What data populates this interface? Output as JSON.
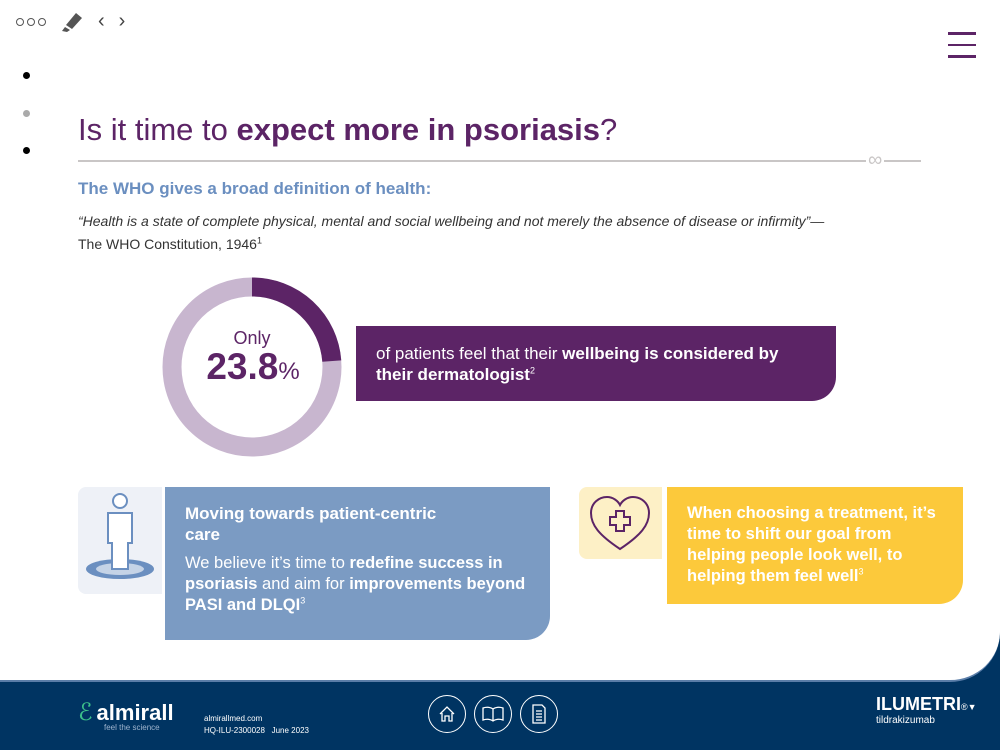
{
  "toolbar": {
    "icons": [
      "more-icon",
      "highlighter-icon",
      "back-icon",
      "forward-icon"
    ]
  },
  "title": {
    "normal": "Is it time to ",
    "bold": "expect more in psoriasis",
    "end": "?"
  },
  "subheading": "The WHO gives a broad definition of health:",
  "quote": {
    "text": "“Health is a state of complete physical, mental and social wellbeing and not merely the absence of disease or infirmity”—",
    "source": "The WHO Constitution, 1946",
    "ref": "1"
  },
  "stat": {
    "prefix": "Only",
    "value": "23.8",
    "unit": "%",
    "fraction": 0.238,
    "text1": "of patients feel that their ",
    "bold1": "wellbeing is considered by their dermatologist",
    "ref": "2"
  },
  "card_blue": {
    "heading": "Moving towards patient-centric care",
    "t1": "We believe it’s time to ",
    "b1": "redefine success in psoriasis",
    "t2": " and aim for ",
    "b2": "improvements beyond PASI and DLQI",
    "ref": "3"
  },
  "card_yellow": {
    "text": "When choosing a treatment, it’s time to shift our goal from helping people look well, to helping them feel well",
    "ref": "3"
  },
  "footer": {
    "company": "almirall",
    "tagline": "feel the science",
    "website": "almirallmed.com",
    "code": "HQ-ILU-2300028",
    "date": "June 2023",
    "brand": "ILUMETRI",
    "brand_mark": "®▼",
    "generic": "tildrakizumab"
  },
  "colors": {
    "purple": "#5c2466",
    "blue": "#7b9bc3",
    "yellow": "#fcc93b",
    "navy": "#003462"
  }
}
